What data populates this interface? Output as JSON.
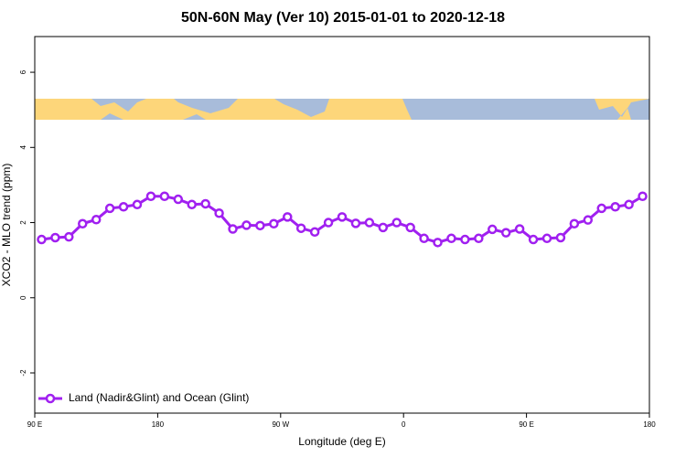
{
  "chart_data": {
    "type": "line",
    "title": "50N-60N May (Ver 10)   2015-01-01 to 2020-12-18",
    "x_label": "Longitude (deg E)",
    "y_label": "XCO2 - MLO trend (ppm)",
    "x": [
      95,
      105,
      115,
      125,
      135,
      145,
      155,
      165,
      175,
      185,
      195,
      205,
      215,
      225,
      235,
      245,
      255,
      265,
      275,
      285,
      295,
      305,
      315,
      325,
      335,
      345,
      355,
      365,
      375,
      385,
      395,
      405,
      415,
      425,
      435,
      445,
      455,
      465,
      475,
      485,
      495,
      505,
      515,
      525,
      535
    ],
    "series": [
      {
        "name": "Land (Nadir&Glint) and Ocean (Glint)",
        "color": "#a020f0",
        "values": [
          1.55,
          1.6,
          1.62,
          1.97,
          2.08,
          2.38,
          2.42,
          2.48,
          2.7,
          2.7,
          2.62,
          2.48,
          2.5,
          2.25,
          1.83,
          1.93,
          1.92,
          1.97,
          2.15,
          1.85,
          1.75,
          2.0,
          2.15,
          1.98,
          2.0,
          1.87,
          2.0,
          1.87,
          1.58,
          1.47,
          1.58,
          1.55,
          1.58,
          1.82,
          1.73,
          1.83,
          1.55,
          1.58,
          1.6,
          1.97,
          2.07,
          2.38,
          2.42,
          2.48,
          2.7
        ]
      }
    ],
    "xlim": [
      90,
      540
    ],
    "xticks": [
      {
        "value": 90,
        "label": "90 E"
      },
      180,
      {
        "value": 270,
        "label": "90 W"
      },
      {
        "value": 360,
        "label": "0"
      },
      {
        "value": 450,
        "label": "90 E"
      },
      {
        "value": 540,
        "label": "180"
      }
    ],
    "ylim": [
      -3.07,
      6.95
    ],
    "yticks": [
      -2,
      0,
      2,
      4,
      6
    ],
    "legend": "bottom-left"
  }
}
